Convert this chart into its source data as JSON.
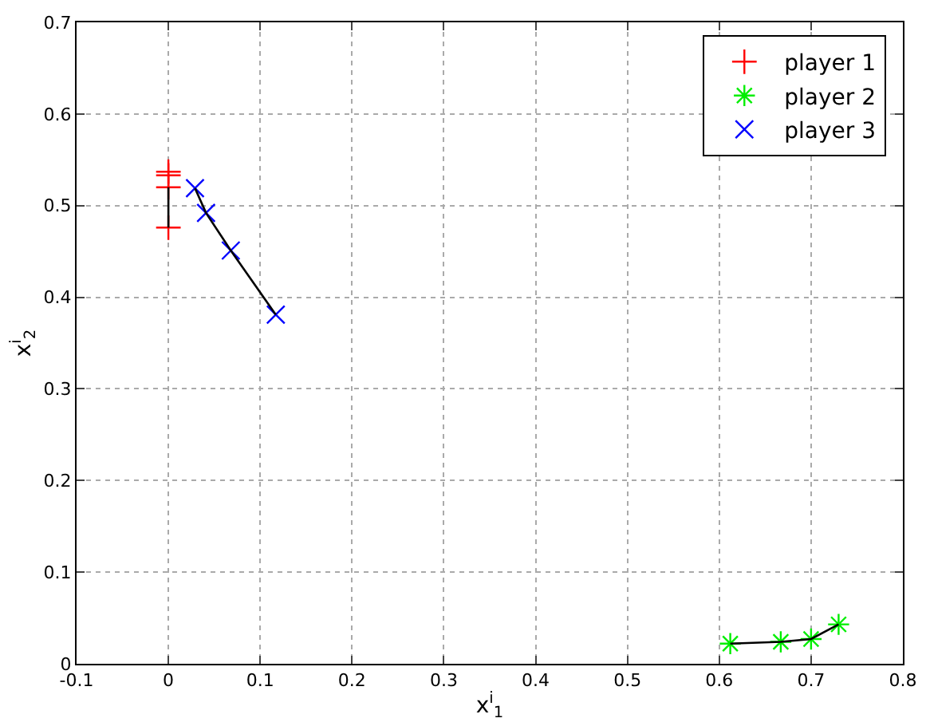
{
  "chart_data": {
    "type": "scatter",
    "xlabel": "x$^{i}$$_{1}$",
    "ylabel": "x$^{i}$$_{2}$",
    "xlim": [
      -0.1,
      0.8
    ],
    "ylim": [
      0,
      0.7
    ],
    "xticks": [
      -0.1,
      0,
      0.1,
      0.2,
      0.3,
      0.4,
      0.5,
      0.6,
      0.7,
      0.8
    ],
    "yticks": [
      0,
      0.1,
      0.2,
      0.3,
      0.4,
      0.5,
      0.6,
      0.7
    ],
    "grid": true,
    "legend": "top right",
    "series": [
      {
        "name": "player 1",
        "color": "#ff0000",
        "marker": "cross",
        "x": [
          0,
          0,
          0,
          0
        ],
        "values": [
          0.537,
          0.533,
          0.52,
          0.476
        ]
      },
      {
        "name": "player 2",
        "color": "#00ee00",
        "x": [
          0.73,
          0.7,
          0.667,
          0.612
        ],
        "values": [
          0.043,
          0.027,
          0.024,
          0.022
        ]
      },
      {
        "name": "player 3",
        "color": "#0000ff",
        "marker": "x",
        "x": [
          0.029,
          0.041,
          0.068,
          0.117
        ],
        "values": [
          0.519,
          0.492,
          0.451,
          0.381
        ]
      },
      {
        "type": "line",
        "color": "#000000",
        "marker": "none",
        "x": [
          0,
          0
        ],
        "values": [
          0.52,
          0.476
        ]
      },
      {
        "type": "line",
        "color": "#000000",
        "marker": "none",
        "x": [
          0.73,
          0.7,
          0.667,
          0.612
        ],
        "values": [
          0.043,
          0.027,
          0.024,
          0.022
        ]
      },
      {
        "type": "line",
        "color": "#000000",
        "marker": "none",
        "x": [
          0.029,
          0.041,
          0.068,
          0.117
        ],
        "values": [
          0.519,
          0.492,
          0.451,
          0.381
        ]
      }
    ]
  }
}
